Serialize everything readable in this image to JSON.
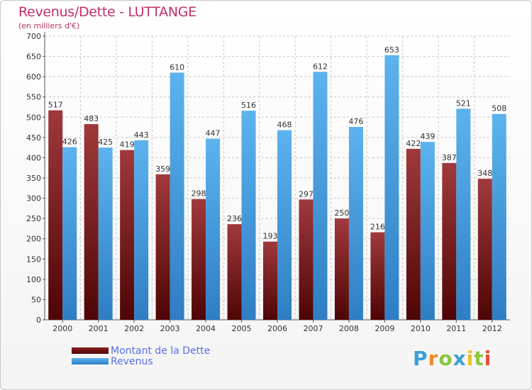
{
  "chart_data": {
    "type": "bar",
    "title": "Revenus/Dette - LUTTANGE",
    "subtitle": "(en milliers d'€)",
    "categories": [
      "2000",
      "2001",
      "2002",
      "2003",
      "2004",
      "2005",
      "2006",
      "2007",
      "2008",
      "2009",
      "2010",
      "2011",
      "2012"
    ],
    "series": [
      {
        "name": "Montant de la Dette",
        "color": "#6b0c0c",
        "values": [
          517,
          483,
          419,
          359,
          298,
          236,
          193,
          297,
          250,
          216,
          422,
          387,
          348
        ]
      },
      {
        "name": "Revenus",
        "color": "#4a9fe0",
        "values": [
          426,
          425,
          443,
          610,
          447,
          516,
          468,
          612,
          476,
          653,
          439,
          521,
          508
        ]
      }
    ],
    "ylim": [
      0,
      700
    ],
    "yticks": [
      0,
      50,
      100,
      150,
      200,
      250,
      300,
      350,
      400,
      450,
      500,
      550,
      600,
      650,
      700
    ],
    "grid": true,
    "legend_position": "bottom-left"
  },
  "logo": {
    "text": "Proxiti",
    "letters": [
      {
        "ch": "P",
        "color": "#3aa0d8"
      },
      {
        "ch": "r",
        "color": "#f08a24"
      },
      {
        "ch": "o",
        "color": "#8cc63f"
      },
      {
        "ch": "x",
        "color": "#3aa0d8"
      },
      {
        "ch": "i",
        "color": "#f0c020"
      },
      {
        "ch": "t",
        "color": "#8cc63f"
      },
      {
        "ch": "i",
        "color": "#e84c3d"
      }
    ]
  }
}
